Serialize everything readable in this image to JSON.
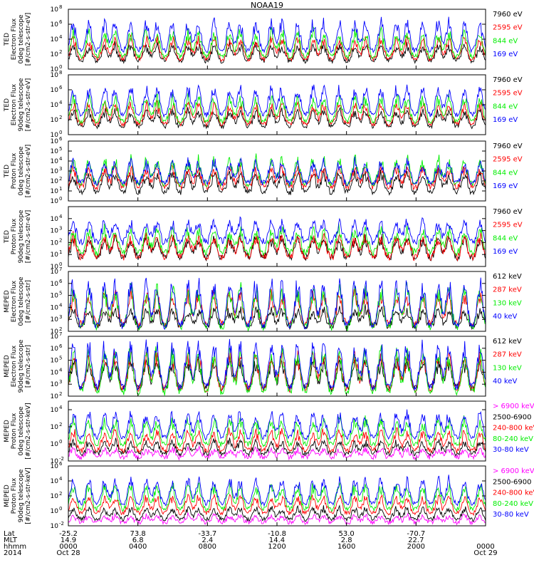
{
  "title": "NOAA19",
  "colors": {
    "black": "#000000",
    "red": "#ff0000",
    "green": "#00ee00",
    "blue": "#0000ff",
    "magenta": "#ff00ff"
  },
  "chart_data": [
    {
      "type": "line",
      "ylabel": [
        "TED",
        "Electron Flux",
        "0deg telescope",
        "[#/cm2-s-str-eV]"
      ],
      "ylog": [
        0,
        8
      ],
      "yticks": [
        {
          "exp": "0"
        },
        {
          "exp": "2"
        },
        {
          "exp": "4"
        },
        {
          "exp": "6"
        },
        {
          "exp": "8"
        }
      ],
      "series": [
        {
          "name": "7960 eV",
          "color": "#000000",
          "base": 1,
          "peak": 3.5
        },
        {
          "name": "2595 eV",
          "color": "#ff0000",
          "base": 1.2,
          "peak": 4.5
        },
        {
          "name": "844 eV",
          "color": "#00ee00",
          "base": 1.5,
          "peak": 5.5
        },
        {
          "name": "169 eV",
          "color": "#0000ff",
          "base": 2.3,
          "peak": 6.8
        }
      ]
    },
    {
      "type": "line",
      "ylabel": [
        "TED",
        "Electron Flux",
        "90deg telescope",
        "[#/cm2-s-str-eV]"
      ],
      "ylog": [
        0,
        8
      ],
      "yticks": [
        {
          "exp": "0"
        },
        {
          "exp": "2"
        },
        {
          "exp": "4"
        },
        {
          "exp": "6"
        },
        {
          "exp": "8"
        }
      ],
      "series": [
        {
          "name": "7960 eV",
          "color": "#000000",
          "base": 1,
          "peak": 3.5
        },
        {
          "name": "2595 eV",
          "color": "#ff0000",
          "base": 1.3,
          "peak": 4.5
        },
        {
          "name": "844 eV",
          "color": "#00ee00",
          "base": 1.6,
          "peak": 5.5
        },
        {
          "name": "169 eV",
          "color": "#0000ff",
          "base": 2.5,
          "peak": 6.8
        }
      ]
    },
    {
      "type": "line",
      "ylabel": [
        "TED",
        "Proton Flux",
        "0deg telescope",
        "[#/cm2-s-str-eV]"
      ],
      "ylog": [
        0,
        6
      ],
      "yticks": [
        {
          "exp": "0"
        },
        {
          "exp": "1"
        },
        {
          "exp": "2"
        },
        {
          "exp": "3"
        },
        {
          "exp": "4"
        },
        {
          "exp": "5"
        },
        {
          "exp": "6"
        }
      ],
      "series": [
        {
          "name": "7960 eV",
          "color": "#000000",
          "base": 0.8,
          "peak": 3
        },
        {
          "name": "2595 eV",
          "color": "#ff0000",
          "base": 1.3,
          "peak": 3.6
        },
        {
          "name": "844 eV",
          "color": "#00ee00",
          "base": 1.6,
          "peak": 4.5
        },
        {
          "name": "169 eV",
          "color": "#0000ff",
          "base": 1.7,
          "peak": 4.2
        }
      ]
    },
    {
      "type": "line",
      "ylabel": [
        "TED",
        "Proton Flux",
        "90deg telescope",
        "[#/cm2-s-str-eV]"
      ],
      "ylog": [
        0,
        5
      ],
      "yticks": [
        {
          "exp": "0"
        },
        {
          "exp": "1"
        },
        {
          "exp": "2"
        },
        {
          "exp": "3"
        },
        {
          "exp": "4"
        }
      ],
      "series": [
        {
          "name": "7960 eV",
          "color": "#000000",
          "base": 0.7,
          "peak": 2.6
        },
        {
          "name": "2595 eV",
          "color": "#ff0000",
          "base": 0.7,
          "peak": 2.8
        },
        {
          "name": "844 eV",
          "color": "#00ee00",
          "base": 1.1,
          "peak": 3.4
        },
        {
          "name": "169 eV",
          "color": "#0000ff",
          "base": 2,
          "peak": 4
        }
      ]
    },
    {
      "type": "line",
      "ylabel": [
        "MEPED",
        "Electron Flux",
        "0deg telescope",
        "[#/cm2-s-str]"
      ],
      "ylog": [
        2,
        7
      ],
      "yticks": [
        {
          "exp": "2"
        },
        {
          "exp": "3"
        },
        {
          "exp": "4"
        },
        {
          "exp": "5"
        },
        {
          "exp": "6"
        },
        {
          "exp": "7"
        }
      ],
      "series": [
        {
          "name": "612 keV",
          "color": "#000000",
          "base": 2.4,
          "peak": 4
        },
        {
          "name": "287 keV",
          "color": "#ff0000",
          "base": 2.5,
          "peak": 5.5
        },
        {
          "name": "130 keV",
          "color": "#00ee00",
          "base": 2.2,
          "peak": 6
        },
        {
          "name": "40 keV",
          "color": "#0000ff",
          "base": 2.3,
          "peak": 6.6
        }
      ]
    },
    {
      "type": "line",
      "ylabel": [
        "MEPED",
        "Electron Flux",
        "90deg telescope",
        "[#/cm2-s-str]"
      ],
      "ylog": [
        2,
        7
      ],
      "yticks": [
        {
          "exp": "2"
        },
        {
          "exp": "3"
        },
        {
          "exp": "4"
        },
        {
          "exp": "5"
        },
        {
          "exp": "6"
        },
        {
          "exp": "7"
        }
      ],
      "series": [
        {
          "name": "612 keV",
          "color": "#000000",
          "base": 2.6,
          "peak": 5.2
        },
        {
          "name": "287 keV",
          "color": "#ff0000",
          "base": 2.5,
          "peak": 5.8
        },
        {
          "name": "130 keV",
          "color": "#00ee00",
          "base": 2.2,
          "peak": 6.2
        },
        {
          "name": "40 keV",
          "color": "#0000ff",
          "base": 2.6,
          "peak": 6.8
        }
      ]
    },
    {
      "type": "line",
      "ylabel": [
        "MEPED",
        "Proton Flux",
        "0deg telescope",
        "[#/cm2-s-str-keV]"
      ],
      "ylog": [
        -2,
        5
      ],
      "yticks": [
        {
          "exp": "-2"
        },
        {
          "exp": "0"
        },
        {
          "exp": "2"
        },
        {
          "exp": "4"
        }
      ],
      "series": [
        {
          "name": "> 6900 keV",
          "color": "#ff00ff",
          "base": -1.6,
          "peak": -0.5
        },
        {
          "name": "2500-6900",
          "color": "#000000",
          "base": -1.2,
          "peak": 0.5
        },
        {
          "name": "240-800 keV",
          "color": "#ff0000",
          "base": -0.9,
          "peak": 1.8
        },
        {
          "name": "80-240 keV",
          "color": "#00ee00",
          "base": -0.2,
          "peak": 3.2
        },
        {
          "name": "30-80 keV",
          "color": "#0000ff",
          "base": 0.6,
          "peak": 4
        }
      ]
    },
    {
      "type": "line",
      "ylabel": [
        "MEPED",
        "Proton Flux",
        "90deg telescope",
        "[#/cm2-s-str-keV]"
      ],
      "ylog": [
        -2,
        6
      ],
      "yticks": [
        {
          "exp": "-2"
        },
        {
          "exp": "0"
        },
        {
          "exp": "2"
        },
        {
          "exp": "4"
        },
        {
          "exp": "6"
        }
      ],
      "series": [
        {
          "name": "> 6900 keV",
          "color": "#ff00ff",
          "base": -1.6,
          "peak": -0.5
        },
        {
          "name": "2500-6900",
          "color": "#000000",
          "base": -1.2,
          "peak": 0.6
        },
        {
          "name": "240-800 keV",
          "color": "#ff0000",
          "base": -0.4,
          "peak": 2.2
        },
        {
          "name": "80-240 keV",
          "color": "#00ee00",
          "base": 0.1,
          "peak": 3.8
        },
        {
          "name": "30-80 keV",
          "color": "#0000ff",
          "base": 0.8,
          "peak": 4.6
        }
      ]
    }
  ],
  "xaxis": {
    "row_labels": [
      "Lat",
      "MLT",
      "hhmm",
      "2014"
    ],
    "ticks": [
      {
        "lat": "-25.2",
        "mlt": "14.9",
        "hhmm": "0000",
        "date": "Oct 28"
      },
      {
        "lat": "73.8",
        "mlt": "6.8",
        "hhmm": "0400",
        "date": ""
      },
      {
        "lat": "-33.7",
        "mlt": "2.4",
        "hhmm": "0800",
        "date": ""
      },
      {
        "lat": "-10.8",
        "mlt": "14.4",
        "hhmm": "1200",
        "date": ""
      },
      {
        "lat": "53.0",
        "mlt": "2.8",
        "hhmm": "1600",
        "date": ""
      },
      {
        "lat": "-70.7",
        "mlt": "22.7",
        "hhmm": "2000",
        "date": ""
      },
      {
        "lat": "",
        "mlt": "",
        "hhmm": "0000",
        "date": "Oct 29"
      }
    ]
  }
}
